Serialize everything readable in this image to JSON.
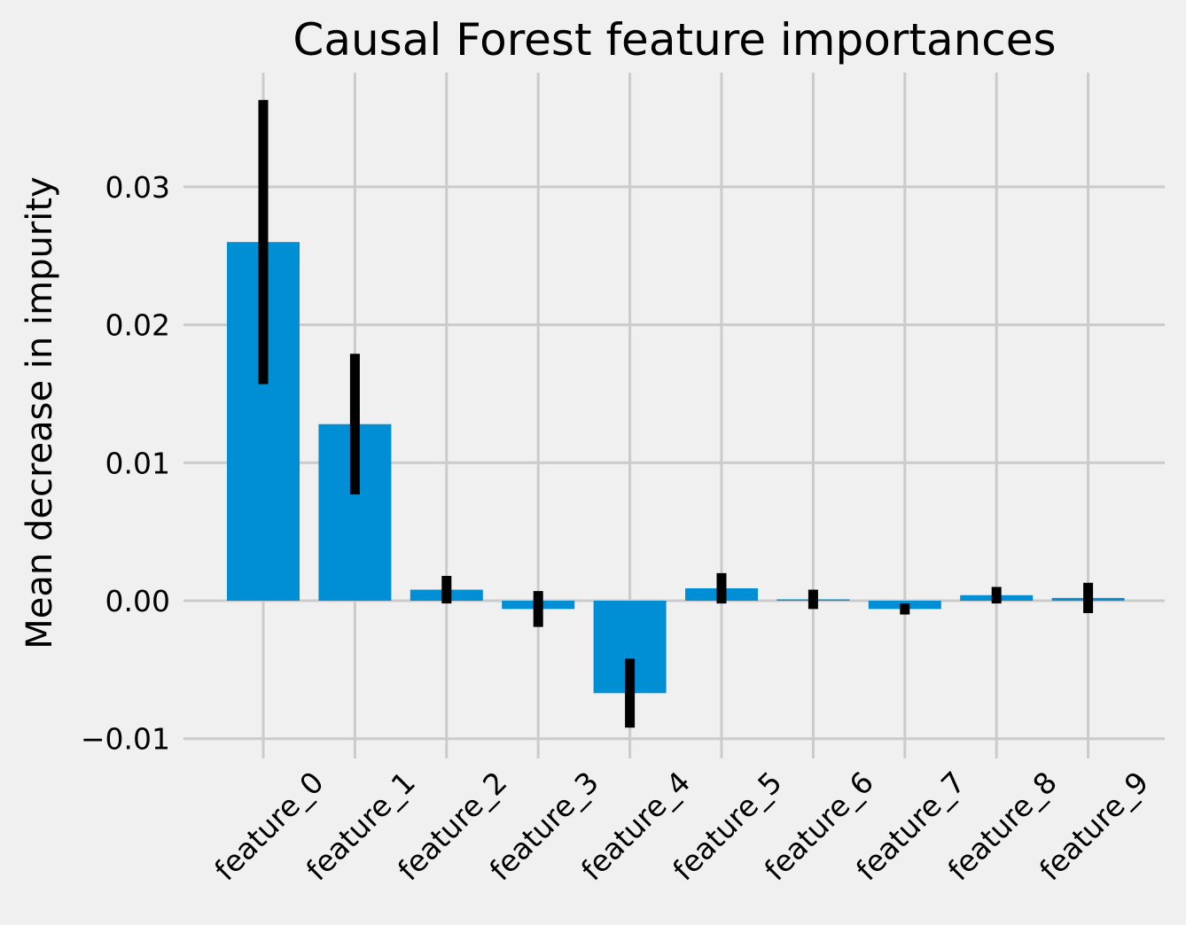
{
  "chart_data": {
    "type": "bar",
    "title": "Causal Forest feature importances",
    "xlabel": "",
    "ylabel": "Mean decrease in impurity",
    "categories": [
      "feature_0",
      "feature_1",
      "feature_2",
      "feature_3",
      "feature_4",
      "feature_5",
      "feature_6",
      "feature_7",
      "feature_8",
      "feature_9"
    ],
    "values": [
      0.026,
      0.0128,
      0.0008,
      -0.0006,
      -0.0067,
      0.0009,
      0.0001,
      -0.0006,
      0.0004,
      0.0002
    ],
    "error": [
      0.0103,
      0.0051,
      0.001,
      0.0013,
      0.0025,
      0.0011,
      0.0007,
      0.0004,
      0.0006,
      0.0011
    ],
    "ylim": [
      -0.0115,
      0.0385
    ],
    "yticks": [
      -0.01,
      0.0,
      0.01,
      0.02,
      0.03
    ],
    "ytick_labels": [
      "−0.01",
      "0.00",
      "0.01",
      "0.02",
      "0.03"
    ],
    "grid": true,
    "legend": null,
    "xtick_rotation": 45,
    "bar_color": "#008fd5",
    "error_color": "#000000",
    "background_color": "#f0f0f0",
    "grid_color": "#cbcbcb"
  }
}
